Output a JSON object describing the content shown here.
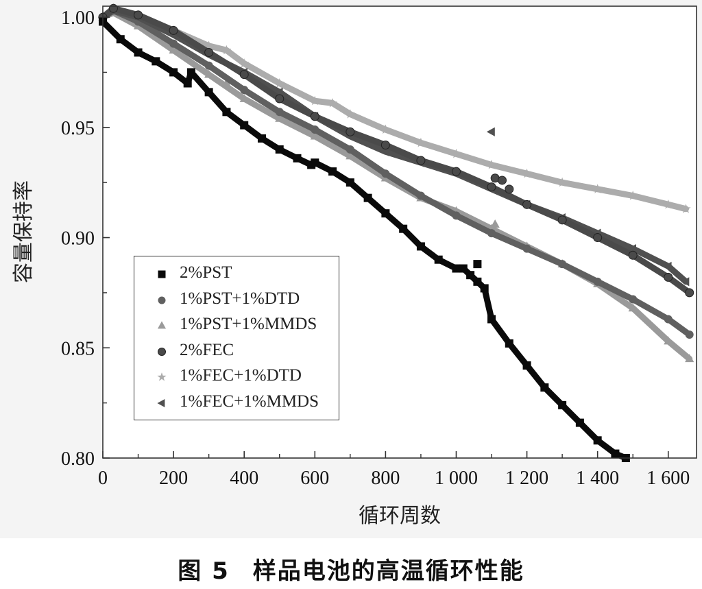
{
  "chart_data": {
    "type": "line",
    "xlabel": "循环周数",
    "ylabel": "容量保持率",
    "xlim": [
      0,
      1680
    ],
    "ylim": [
      0.8,
      1.005
    ],
    "x_ticks": [
      0,
      200,
      400,
      600,
      800,
      1000,
      1200,
      1400,
      1600
    ],
    "x_tick_labels": [
      "0",
      "200",
      "400",
      "600",
      "800",
      "1 000",
      "1 200",
      "1 400",
      "1 600"
    ],
    "y_ticks": [
      0.8,
      0.85,
      0.9,
      0.95,
      1.0
    ],
    "y_tick_labels": [
      "0.80",
      "0.85",
      "0.90",
      "0.95",
      "1.00"
    ],
    "grid": false,
    "legend_position": "bottom-left",
    "series": [
      {
        "name": "2%PST",
        "color": "#0a0a0a",
        "marker": "square",
        "x": [
          0,
          50,
          100,
          150,
          200,
          240,
          250,
          300,
          350,
          400,
          450,
          500,
          550,
          590,
          600,
          650,
          700,
          750,
          800,
          850,
          900,
          950,
          1000,
          1020,
          1040,
          1060,
          1080,
          1100,
          1150,
          1200,
          1250,
          1300,
          1350,
          1400,
          1450,
          1480
        ],
        "y": [
          0.998,
          0.99,
          0.984,
          0.98,
          0.975,
          0.97,
          0.975,
          0.966,
          0.957,
          0.951,
          0.945,
          0.94,
          0.936,
          0.933,
          0.934,
          0.93,
          0.925,
          0.918,
          0.911,
          0.904,
          0.896,
          0.89,
          0.886,
          0.886,
          0.883,
          0.88,
          0.877,
          0.863,
          0.852,
          0.842,
          0.832,
          0.824,
          0.816,
          0.808,
          0.802,
          0.8
        ],
        "outliers": [
          {
            "x": 1060,
            "y": 0.888
          }
        ]
      },
      {
        "name": "1%PST+1%DTD",
        "color": "#606060",
        "marker": "circle",
        "x": [
          0,
          30,
          100,
          200,
          300,
          400,
          500,
          600,
          700,
          800,
          900,
          1000,
          1100,
          1200,
          1300,
          1400,
          1500,
          1600,
          1660
        ],
        "y": [
          1.0,
          1.003,
          0.998,
          0.988,
          0.978,
          0.967,
          0.957,
          0.949,
          0.94,
          0.929,
          0.919,
          0.91,
          0.902,
          0.895,
          0.888,
          0.88,
          0.872,
          0.863,
          0.856
        ]
      },
      {
        "name": "1%PST+1%MMDS",
        "color": "#9a9a9a",
        "marker": "triangle-up",
        "x": [
          0,
          30,
          100,
          200,
          300,
          400,
          500,
          600,
          700,
          800,
          900,
          1000,
          1100,
          1200,
          1300,
          1400,
          1500,
          1600,
          1660
        ],
        "y": [
          1.0,
          1.002,
          0.996,
          0.985,
          0.974,
          0.963,
          0.954,
          0.946,
          0.937,
          0.927,
          0.918,
          0.912,
          0.904,
          0.896,
          0.888,
          0.879,
          0.868,
          0.853,
          0.845
        ],
        "outliers": [
          {
            "x": 350,
            "y": 0.97
          },
          {
            "x": 1110,
            "y": 0.906
          }
        ]
      },
      {
        "name": "2%FEC",
        "color": "#4a4a4a",
        "marker": "circle-dot",
        "x": [
          0,
          30,
          100,
          200,
          300,
          400,
          500,
          600,
          700,
          800,
          900,
          1000,
          1100,
          1200,
          1300,
          1400,
          1500,
          1600,
          1660
        ],
        "y": [
          1.0,
          1.004,
          1.001,
          0.994,
          0.984,
          0.974,
          0.963,
          0.955,
          0.948,
          0.942,
          0.935,
          0.93,
          0.923,
          0.915,
          0.908,
          0.9,
          0.892,
          0.882,
          0.875
        ],
        "outliers": [
          {
            "x": 1110,
            "y": 0.927
          },
          {
            "x": 1130,
            "y": 0.926
          },
          {
            "x": 1150,
            "y": 0.922
          }
        ]
      },
      {
        "name": "1%FEC+1%DTD",
        "color": "#acacac",
        "marker": "star",
        "x": [
          0,
          30,
          100,
          200,
          300,
          350,
          400,
          500,
          600,
          650,
          700,
          800,
          900,
          1000,
          1100,
          1200,
          1300,
          1400,
          1500,
          1600,
          1650
        ],
        "y": [
          1.0,
          1.004,
          1.001,
          0.994,
          0.987,
          0.985,
          0.979,
          0.97,
          0.962,
          0.961,
          0.956,
          0.949,
          0.943,
          0.938,
          0.933,
          0.929,
          0.925,
          0.922,
          0.919,
          0.915,
          0.913
        ]
      },
      {
        "name": "1%FEC+1%MMDS",
        "color": "#505050",
        "marker": "triangle-left",
        "x": [
          0,
          30,
          100,
          200,
          300,
          400,
          500,
          600,
          700,
          800,
          900,
          1000,
          1100,
          1200,
          1300,
          1400,
          1500,
          1600,
          1650
        ],
        "y": [
          1.0,
          1.003,
          1.0,
          0.992,
          0.983,
          0.975,
          0.966,
          0.955,
          0.946,
          0.939,
          0.934,
          0.929,
          0.922,
          0.915,
          0.909,
          0.902,
          0.895,
          0.887,
          0.88
        ],
        "outliers": [
          {
            "x": 1100,
            "y": 0.948
          }
        ]
      }
    ]
  },
  "caption": {
    "number": "图 5",
    "text": "样品电池的高温循环性能"
  }
}
